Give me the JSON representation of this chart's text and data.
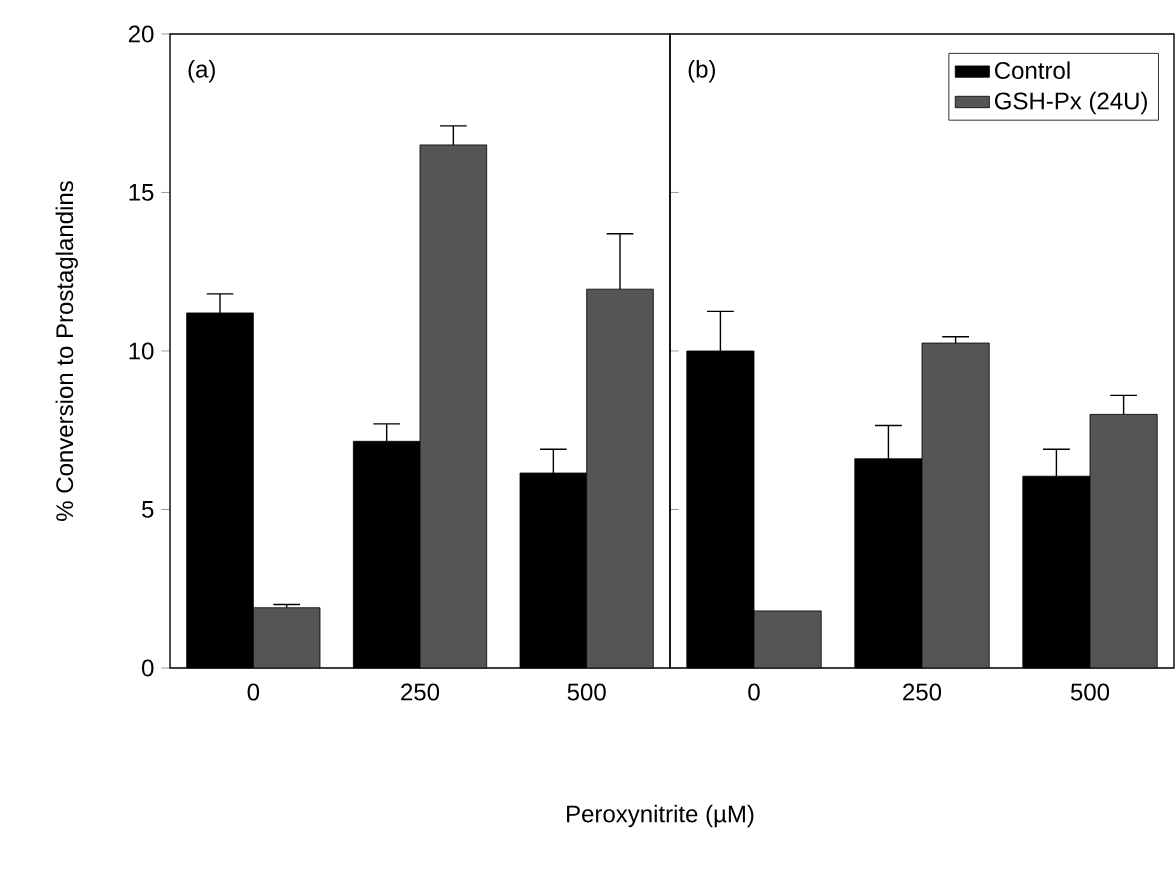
{
  "chart_data": [
    {
      "type": "bar",
      "title": "(a)",
      "ylabel": "% Conversion to Prostaglandins",
      "xlabel": "Peroxynitrite (µM)",
      "categories": [
        "0",
        "250",
        "500"
      ],
      "ylim": [
        0,
        20
      ],
      "yticks": [
        0,
        5,
        10,
        15,
        20
      ],
      "series": [
        {
          "color": "#000000",
          "values": [
            11.2,
            7.15,
            6.15
          ],
          "errors": [
            [
              11.2,
              11.8
            ],
            [
              7.15,
              7.7
            ],
            [
              6.15,
              6.9
            ]
          ]
        },
        {
          "color": "#555555",
          "values": [
            1.9,
            16.5,
            11.95
          ],
          "errors": [
            [
              1.9,
              2.0
            ],
            [
              16.5,
              17.1
            ],
            [
              11.95,
              13.7
            ]
          ]
        }
      ]
    },
    {
      "type": "bar",
      "title": "(b)",
      "categories": [
        "0",
        "250",
        "500"
      ],
      "ylim": [
        0,
        20
      ],
      "tick_labels": "x",
      "legend": "top right",
      "series": [
        {
          "name": "Control",
          "color": "#000000",
          "values": [
            10.0,
            6.6,
            6.05
          ],
          "errors": [
            [
              10.0,
              11.25
            ],
            [
              6.6,
              7.65
            ],
            [
              6.05,
              6.9
            ]
          ]
        },
        {
          "name": "GSH-Px (24U)",
          "color": "#555555",
          "values": [
            1.8,
            10.25,
            8.0
          ],
          "errors": [
            null,
            [
              10.25,
              10.45
            ],
            [
              8.0,
              8.6
            ]
          ]
        }
      ]
    }
  ]
}
